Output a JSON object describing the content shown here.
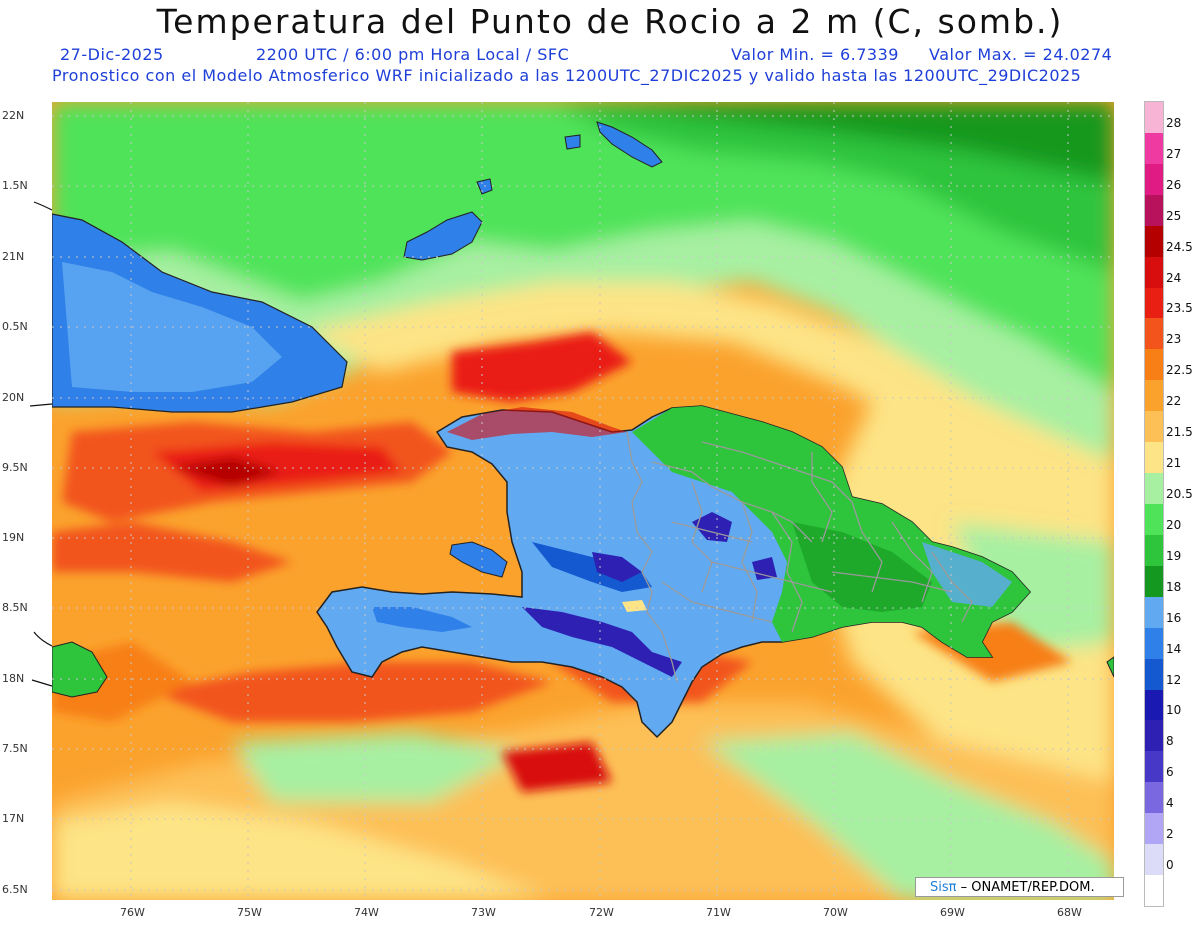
{
  "header": {
    "title": "Temperatura del Punto de Rocio a 2 m (C, somb.)",
    "date": "27-Dic-2025",
    "time_info": "2200 UTC / 6:00 pm Hora Local / SFC",
    "min_value": "Valor Min. = 6.7339",
    "max_value": "Valor Max. = 24.0274",
    "forecast_info": "Pronostico con el Modelo Atmosferico WRF inicializado a las 1200UTC_27DIC2025 y valido hasta las  1200UTC_29DIC2025"
  },
  "lat_ticks": [
    "22N",
    "1.5N",
    "21N",
    "0.5N",
    "20N",
    "9.5N",
    "19N",
    "8.5N",
    "18N",
    "7.5N",
    "17N",
    "6.5N"
  ],
  "lon_ticks": [
    "76W",
    "75W",
    "74W",
    "73W",
    "72W",
    "71W",
    "70W",
    "69W",
    "68W"
  ],
  "legend": {
    "labels": [
      "28",
      "27",
      "26",
      "25",
      "24.5",
      "24",
      "23.5",
      "23",
      "22.5",
      "22",
      "21.5",
      "21",
      "20.5",
      "20",
      "19",
      "18",
      "16",
      "14",
      "12",
      "10",
      "8",
      "6",
      "4",
      "2",
      "0"
    ],
    "colors": [
      "#f7b4d4",
      "#ee3aa1",
      "#e01b84",
      "#b8125c",
      "#b50000",
      "#d80e0e",
      "#ea1f14",
      "#f2541c",
      "#f77f15",
      "#fba22d",
      "#fdc056",
      "#fde486",
      "#a7f0a2",
      "#4fe35a",
      "#2ec43c",
      "#14981f",
      "#61aaf2",
      "#2f80e8",
      "#1459cf",
      "#1a1ab2",
      "#2d20b3",
      "#4838c8",
      "#7a68e0",
      "#b1a6f5",
      "#dcdcf8"
    ]
  },
  "credit": {
    "logo": "Sisπ",
    "text": "– ONAMET/REP.DOM."
  }
}
